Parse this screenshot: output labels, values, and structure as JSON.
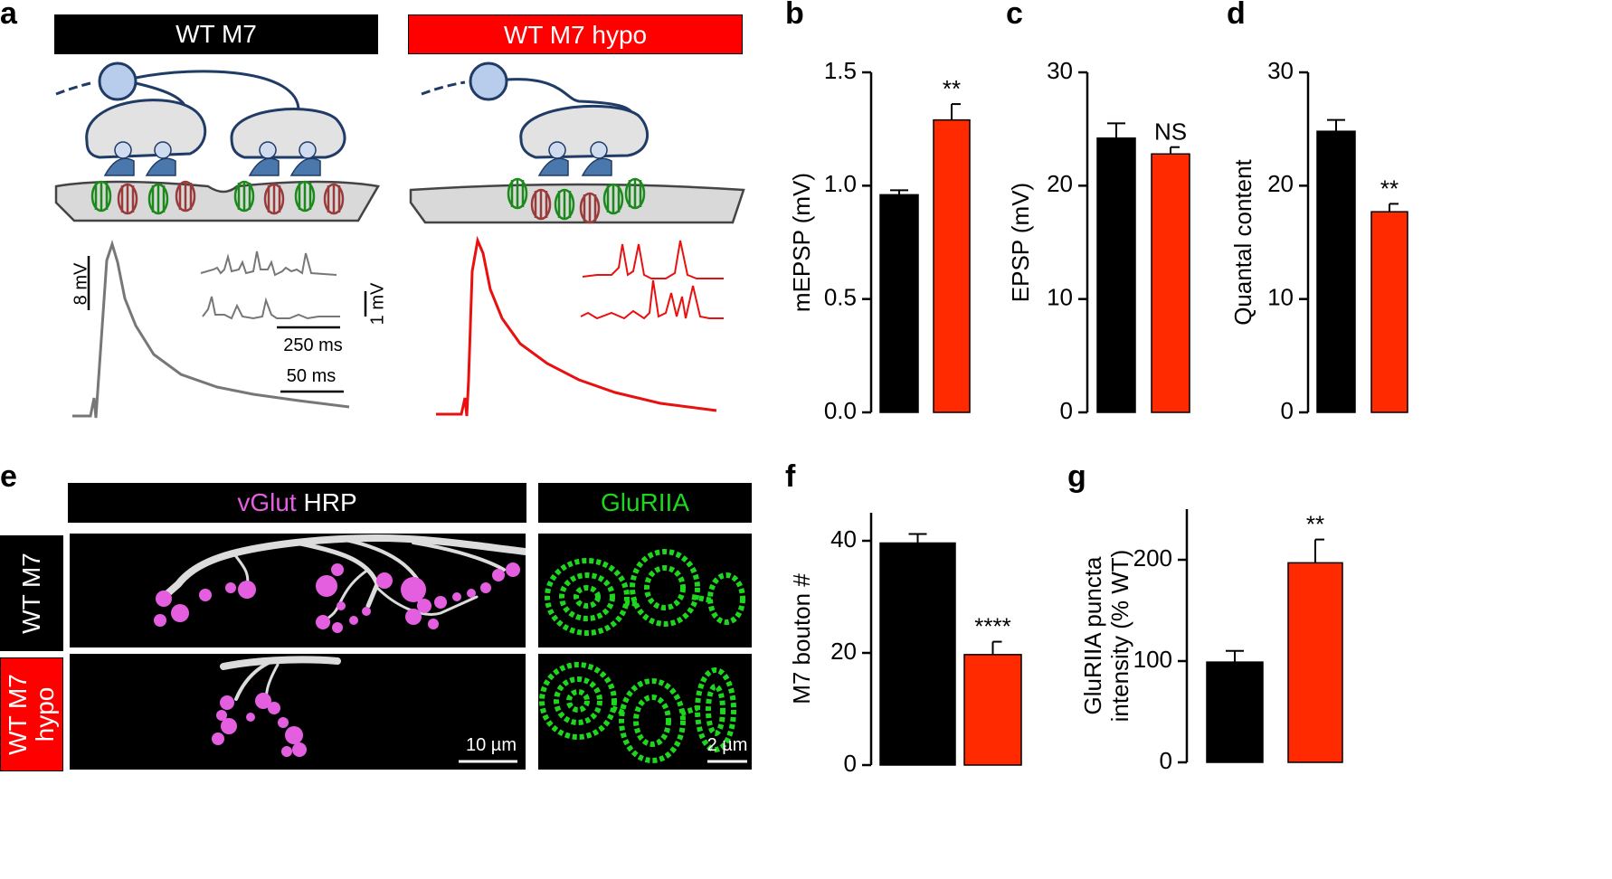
{
  "panel_labels": {
    "a": "a",
    "b": "b",
    "c": "c",
    "d": "d",
    "e": "e",
    "f": "f",
    "g": "g"
  },
  "panel_a": {
    "left_header": "WT M7",
    "right_header": "WT M7 hypo",
    "scale_8mv": "8 mV",
    "scale_1mv": "1 mV",
    "scale_250ms": "250 ms",
    "scale_50ms": "50 ms",
    "colors": {
      "wt_trace": "#777777",
      "hypo_trace": "#e8110f",
      "hypo_header": "#ff0000",
      "wt_header": "#000000"
    }
  },
  "panel_e": {
    "vglut": "vGlut",
    "hrp": "HRP",
    "glur": "GluRIIA",
    "row_wt": "WT M7",
    "row_hypo_line1": "WT M7",
    "row_hypo_line2": "hypo",
    "scale_10um": "10 µm",
    "scale_2um": "2 µm",
    "colors": {
      "vglut": "#e35fe0",
      "glur": "#1fd61f"
    }
  },
  "chart_data": [
    {
      "id": "b",
      "type": "bar",
      "categories": [
        "WT M7",
        "WT M7 hypo"
      ],
      "values": [
        0.96,
        1.29
      ],
      "errors": [
        0.02,
        0.07
      ],
      "colors": [
        "#000000",
        "#ff2a00"
      ],
      "ylabel": "mEPSP (mV)",
      "ylim": [
        0,
        1.5
      ],
      "ticks": [
        "0.0",
        "0.5",
        "1.0",
        "1.5"
      ],
      "annotation": "**"
    },
    {
      "id": "c",
      "type": "bar",
      "categories": [
        "WT M7",
        "WT M7 hypo"
      ],
      "values": [
        24.2,
        22.8
      ],
      "errors": [
        1.3,
        0.6
      ],
      "colors": [
        "#000000",
        "#ff2a00"
      ],
      "ylabel": "EPSP (mV)",
      "ylim": [
        0,
        30
      ],
      "ticks": [
        "0",
        "10",
        "20",
        "30"
      ],
      "annotation": "NS"
    },
    {
      "id": "d",
      "type": "bar",
      "categories": [
        "WT M7",
        "WT M7 hypo"
      ],
      "values": [
        24.8,
        17.7
      ],
      "errors": [
        1.0,
        0.7
      ],
      "colors": [
        "#000000",
        "#ff2a00"
      ],
      "ylabel": "Quantal content",
      "ylim": [
        0,
        30
      ],
      "ticks": [
        "0",
        "10",
        "20",
        "30"
      ],
      "annotation": "**"
    },
    {
      "id": "f",
      "type": "bar",
      "categories": [
        "WT M7",
        "WT M7 hypo"
      ],
      "values": [
        39.6,
        19.7
      ],
      "errors": [
        1.6,
        2.3
      ],
      "colors": [
        "#000000",
        "#ff2a00"
      ],
      "ylabel": "M7 bouton #",
      "ylim": [
        0,
        45
      ],
      "ticks": [
        "0",
        "20",
        "40"
      ],
      "annotation": "****"
    },
    {
      "id": "g",
      "type": "bar",
      "categories": [
        "WT M7",
        "WT M7 hypo"
      ],
      "values": [
        99,
        197
      ],
      "errors": [
        11,
        23
      ],
      "colors": [
        "#000000",
        "#ff2a00"
      ],
      "ylabel_line1": "GluRIIA puncta",
      "ylabel_line2": "intensity (% WT)",
      "ylim": [
        0,
        250
      ],
      "ticks": [
        "0",
        "100",
        "200"
      ],
      "annotation": "**"
    }
  ]
}
